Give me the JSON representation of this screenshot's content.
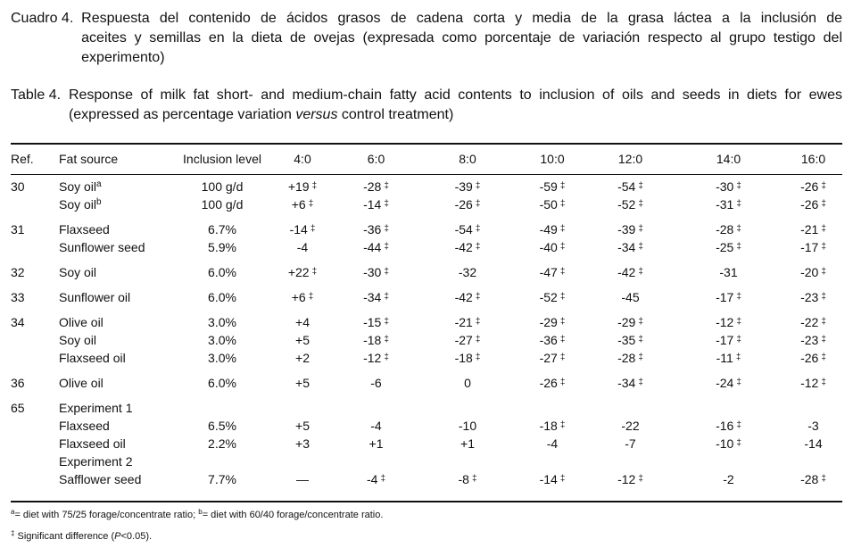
{
  "caption_es": {
    "label": "Cuadro 4.  ",
    "line1": "Respuesta del contenido de ácidos grasos de cadena corta y media de la grasa láctea a la inclusión de",
    "rest": "aceites y semillas en la dieta de ovejas (expresada como porcentaje de variación respecto al grupo testigo del experimento)"
  },
  "caption_en": {
    "label": "Table 4.  ",
    "line1": "Response of milk fat short- and medium-chain fatty acid contents to inclusion of oils and seeds in diets for ewes",
    "rest_before": "(expressed as percentage variation ",
    "rest_italic": "versus",
    "rest_after": " control treatment)"
  },
  "headers": [
    "Ref.",
    "Fat source",
    "Inclusion  level",
    "4:0",
    "6:0",
    "8:0",
    "10:0",
    "12:0",
    "14:0",
    "16:0"
  ],
  "sig_symbol": "‡",
  "groups": [
    {
      "ref": "30",
      "rows": [
        {
          "source": "Soy oil",
          "note": "a",
          "inclusion": "100 g/d",
          "values": [
            [
              "+19",
              true
            ],
            [
              "-28",
              true
            ],
            [
              "-39",
              true
            ],
            [
              "-59",
              true
            ],
            [
              "-54",
              true
            ],
            [
              "-30",
              true
            ],
            [
              "-26",
              true
            ]
          ]
        },
        {
          "source": "Soy oil",
          "note": "b",
          "inclusion": "100 g/d",
          "values": [
            [
              "+6",
              true
            ],
            [
              "-14",
              true
            ],
            [
              "-26",
              true
            ],
            [
              "-50",
              true
            ],
            [
              "-52",
              true
            ],
            [
              "-31",
              true
            ],
            [
              "-26",
              true
            ]
          ]
        }
      ]
    },
    {
      "ref": "31",
      "rows": [
        {
          "source": "Flaxseed",
          "inclusion": "6.7%",
          "values": [
            [
              "-14",
              true
            ],
            [
              "-36",
              true
            ],
            [
              "-54",
              true
            ],
            [
              "-49",
              true
            ],
            [
              "-39",
              true
            ],
            [
              "-28",
              true
            ],
            [
              "-21",
              true
            ]
          ]
        },
        {
          "source": "Sunflower seed",
          "inclusion": "5.9%",
          "values": [
            [
              "-4",
              false
            ],
            [
              "-44",
              true
            ],
            [
              "-42",
              true
            ],
            [
              "-40",
              true
            ],
            [
              "-34",
              true
            ],
            [
              "-25",
              true
            ],
            [
              "-17",
              true
            ]
          ]
        }
      ]
    },
    {
      "ref": "32",
      "rows": [
        {
          "source": "Soy oil",
          "inclusion": "6.0%",
          "values": [
            [
              "+22",
              true
            ],
            [
              "-30",
              true
            ],
            [
              "-32",
              false
            ],
            [
              "-47",
              true
            ],
            [
              "-42",
              true
            ],
            [
              "-31",
              false
            ],
            [
              "-20",
              true
            ]
          ]
        }
      ]
    },
    {
      "ref": "33",
      "rows": [
        {
          "source": "Sunflower oil",
          "inclusion": "6.0%",
          "values": [
            [
              "+6",
              true
            ],
            [
              "-34",
              true
            ],
            [
              "-42",
              true
            ],
            [
              "-52",
              true
            ],
            [
              "-45",
              false
            ],
            [
              "-17",
              true
            ],
            [
              "-23",
              true
            ]
          ]
        }
      ]
    },
    {
      "ref": "34",
      "rows": [
        {
          "source": "Olive oil",
          "inclusion": "3.0%",
          "values": [
            [
              "+4",
              false
            ],
            [
              "-15",
              true
            ],
            [
              "-21",
              true
            ],
            [
              "-29",
              true
            ],
            [
              "-29",
              true
            ],
            [
              "-12",
              true
            ],
            [
              "-22",
              true
            ]
          ]
        },
        {
          "source": "Soy oil",
          "inclusion": "3.0%",
          "values": [
            [
              "+5",
              false
            ],
            [
              "-18",
              true
            ],
            [
              "-27",
              true
            ],
            [
              "-36",
              true
            ],
            [
              "-35",
              true
            ],
            [
              "-17",
              true
            ],
            [
              "-23",
              true
            ]
          ]
        },
        {
          "source": "Flaxseed oil",
          "inclusion": "3.0%",
          "values": [
            [
              "+2",
              false
            ],
            [
              "-12",
              true
            ],
            [
              "-18",
              true
            ],
            [
              "-27",
              true
            ],
            [
              "-28",
              true
            ],
            [
              "-11",
              true
            ],
            [
              "-26",
              true
            ]
          ]
        }
      ]
    },
    {
      "ref": "36",
      "rows": [
        {
          "source": "Olive oil",
          "inclusion": "6.0%",
          "values": [
            [
              "+5",
              false
            ],
            [
              "-6",
              false
            ],
            [
              "0",
              false
            ],
            [
              "-26",
              true
            ],
            [
              "-34",
              true
            ],
            [
              "-24",
              true
            ],
            [
              "-12",
              true
            ]
          ]
        }
      ]
    },
    {
      "ref": "65",
      "rows": [
        {
          "source": "Experiment 1",
          "subhead": true
        },
        {
          "source": "Flaxseed",
          "inclusion": "6.5%",
          "values": [
            [
              "+5",
              false
            ],
            [
              "-4",
              false
            ],
            [
              "-10",
              false
            ],
            [
              "-18",
              true
            ],
            [
              "-22",
              false
            ],
            [
              "-16",
              true
            ],
            [
              "-3",
              false
            ]
          ]
        },
        {
          "source": "Flaxseed oil",
          "inclusion": "2.2%",
          "values": [
            [
              "+3",
              false
            ],
            [
              "+1",
              false
            ],
            [
              "+1",
              false
            ],
            [
              "-4",
              false
            ],
            [
              "-7",
              false
            ],
            [
              "-10",
              true
            ],
            [
              "-14",
              false
            ]
          ]
        },
        {
          "source": "Experiment 2",
          "subhead": true
        },
        {
          "source": "Safflower seed",
          "inclusion": "7.7%",
          "values": [
            [
              "—",
              false
            ],
            [
              "-4",
              true
            ],
            [
              "-8",
              true
            ],
            [
              "-14",
              true
            ],
            [
              "-12",
              true
            ],
            [
              "-2",
              false
            ],
            [
              "-28",
              true
            ]
          ]
        }
      ]
    }
  ],
  "footnotes": {
    "a_mark": "a",
    "a_text": "= diet with 75/25 forage/concentrate ratio; ",
    "b_mark": "b",
    "b_text": "= diet with 60/40 forage/concentrate ratio.",
    "sig_mark": "‡",
    "sig_text_before": " Significant difference (",
    "sig_text_italic": "P",
    "sig_text_after": "<0.05)."
  }
}
